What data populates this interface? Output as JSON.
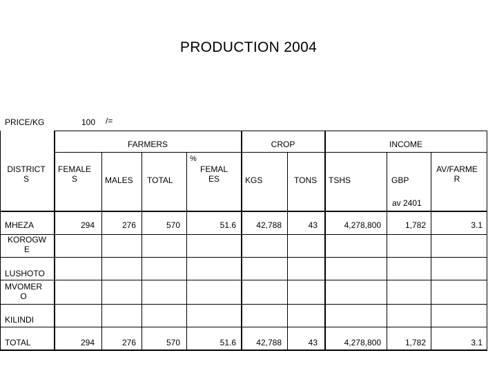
{
  "title": "PRODUCTION 2004",
  "price": {
    "label": "PRICE/KG",
    "value": "100",
    "unit": "/="
  },
  "groups": {
    "farmers": "FARMERS",
    "crop": "CROP",
    "income": "INCOME"
  },
  "headers": {
    "district": [
      "DISTRICT",
      "S"
    ],
    "females": [
      "FEMALE",
      "S"
    ],
    "males": "MALES",
    "total": "TOTAL",
    "pct": "%",
    "pct_females": [
      "FEMAL",
      "ES"
    ],
    "kgs": "KGS",
    "tons": "TONS",
    "tshs": "TSHS",
    "gbp": "GBP",
    "avfarmer": [
      "AV/FARME",
      "R"
    ]
  },
  "note": "av 2401",
  "rows": [
    {
      "district": [
        "MHEZA"
      ],
      "females": "294",
      "males": "276",
      "total": "570",
      "pct": "51.6",
      "kgs": "42,788",
      "tons": "43",
      "tshs": "4,278,800",
      "gbp": "1,782",
      "av": "3.1"
    },
    {
      "district": [
        "KOROGW",
        "E"
      ],
      "females": "",
      "males": "",
      "total": "",
      "pct": "",
      "kgs": "",
      "tons": "",
      "tshs": "",
      "gbp": "",
      "av": ""
    },
    {
      "district": [
        "LUSHOTO"
      ],
      "females": "",
      "males": "",
      "total": "",
      "pct": "",
      "kgs": "",
      "tons": "",
      "tshs": "",
      "gbp": "",
      "av": ""
    },
    {
      "district": [
        "MVOMER",
        "O"
      ],
      "females": "",
      "males": "",
      "total": "",
      "pct": "",
      "kgs": "",
      "tons": "",
      "tshs": "",
      "gbp": "",
      "av": ""
    },
    {
      "district": [
        "KILINDI"
      ],
      "females": "",
      "males": "",
      "total": "",
      "pct": "",
      "kgs": "",
      "tons": "",
      "tshs": "",
      "gbp": "",
      "av": ""
    }
  ],
  "total_row": {
    "district": "TOTAL",
    "females": "294",
    "males": "276",
    "total": "570",
    "pct": "51.6",
    "kgs": "42,788",
    "tons": "43",
    "tshs": "4,278,800",
    "gbp": "1,782",
    "av": "3.1"
  }
}
